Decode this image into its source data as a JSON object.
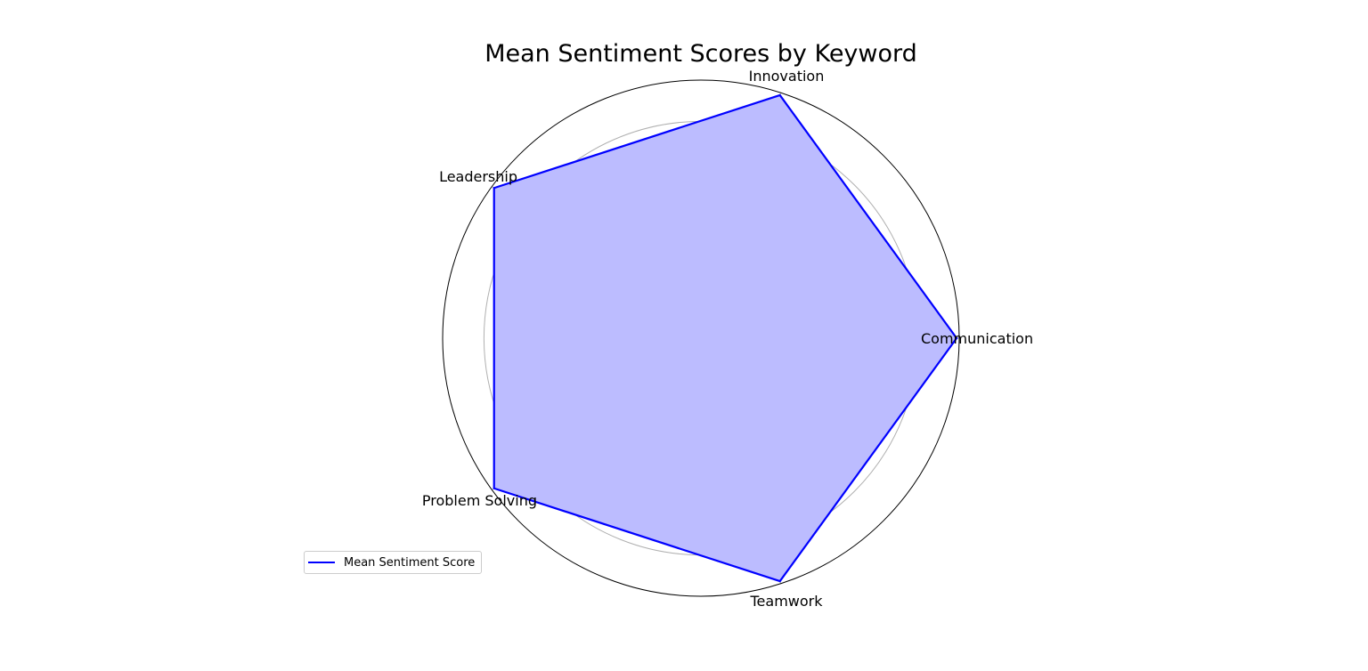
{
  "chart_data": {
    "type": "radar",
    "title": "Mean Sentiment Scores by Keyword",
    "categories": [
      "Communication",
      "Innovation",
      "Leadership",
      "Problem Solving",
      "Teamwork"
    ],
    "series": [
      {
        "name": "Mean Sentiment Score",
        "values": [
          0.99,
          0.99,
          0.99,
          0.99,
          0.99
        ]
      }
    ],
    "rlim": [
      0,
      1
    ],
    "rticks": [
      0.14,
      0.28,
      0.42,
      0.56,
      0.7,
      0.84
    ],
    "grid": true,
    "legend_position": "lower-left",
    "colors": {
      "line": "#0000ff",
      "fill": "#bcbcff",
      "grid": "#b0b0b0",
      "frame": "#000000"
    }
  }
}
